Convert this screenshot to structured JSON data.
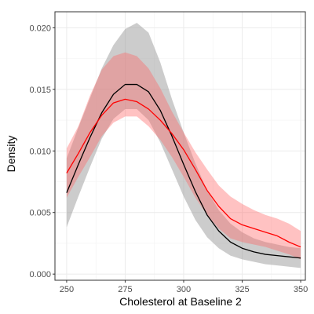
{
  "chart_data": {
    "type": "area",
    "title": "",
    "xlabel": "Cholesterol at Baseline 2",
    "ylabel": "Density",
    "xlim": [
      245,
      352
    ],
    "ylim": [
      -0.0005,
      0.0213
    ],
    "x_ticks": [
      250,
      275,
      300,
      325,
      350
    ],
    "x_tick_labels": [
      "250",
      "275",
      "300",
      "325",
      "350"
    ],
    "y_ticks": [
      0.0,
      0.005,
      0.01,
      0.015,
      0.02
    ],
    "y_tick_labels": [
      "0.000",
      "0.005",
      "0.010",
      "0.015",
      "0.020"
    ],
    "grid": true,
    "legend": "none",
    "x": [
      250,
      255,
      260,
      265,
      270,
      275,
      280,
      285,
      290,
      295,
      300,
      305,
      310,
      315,
      320,
      325,
      330,
      335,
      340,
      345,
      350
    ],
    "series": [
      {
        "line_color": "#000000",
        "band_color": "#999999",
        "values": [
          0.0066,
          0.0089,
          0.0111,
          0.0131,
          0.0146,
          0.0154,
          0.0154,
          0.0148,
          0.0133,
          0.0112,
          0.0089,
          0.0067,
          0.0048,
          0.0035,
          0.0026,
          0.0021,
          0.0018,
          0.0016,
          0.0015,
          0.0014,
          0.0013
        ],
        "lower": [
          0.0038,
          0.0063,
          0.0087,
          0.011,
          0.0126,
          0.0134,
          0.0134,
          0.0125,
          0.0107,
          0.0085,
          0.0063,
          0.0044,
          0.003,
          0.0021,
          0.0015,
          0.0012,
          0.001,
          0.0008,
          0.0007,
          0.0006,
          0.0005
        ],
        "upper": [
          0.0094,
          0.0119,
          0.0143,
          0.0167,
          0.0186,
          0.0199,
          0.0204,
          0.0196,
          0.0172,
          0.0142,
          0.0115,
          0.009,
          0.0068,
          0.0052,
          0.0041,
          0.0034,
          0.0029,
          0.0026,
          0.0024,
          0.0022,
          0.0021
        ]
      },
      {
        "line_color": "#ff0000",
        "band_color": "#ff6666",
        "values": [
          0.0082,
          0.0098,
          0.0115,
          0.0129,
          0.0139,
          0.0142,
          0.014,
          0.0134,
          0.0125,
          0.0114,
          0.0101,
          0.0085,
          0.0068,
          0.0055,
          0.0045,
          0.004,
          0.0037,
          0.0034,
          0.0031,
          0.0026,
          0.0022
        ],
        "lower": [
          0.0062,
          0.0079,
          0.0095,
          0.0112,
          0.0123,
          0.0128,
          0.0128,
          0.012,
          0.0109,
          0.0095,
          0.0079,
          0.0062,
          0.0048,
          0.0037,
          0.0029,
          0.0026,
          0.0024,
          0.0022,
          0.0019,
          0.0016,
          0.0012
        ],
        "upper": [
          0.0102,
          0.012,
          0.0145,
          0.0166,
          0.0177,
          0.018,
          0.0177,
          0.0167,
          0.0151,
          0.0132,
          0.0115,
          0.0099,
          0.0085,
          0.0072,
          0.0063,
          0.0057,
          0.0052,
          0.0048,
          0.0045,
          0.0041,
          0.0035
        ]
      }
    ]
  }
}
